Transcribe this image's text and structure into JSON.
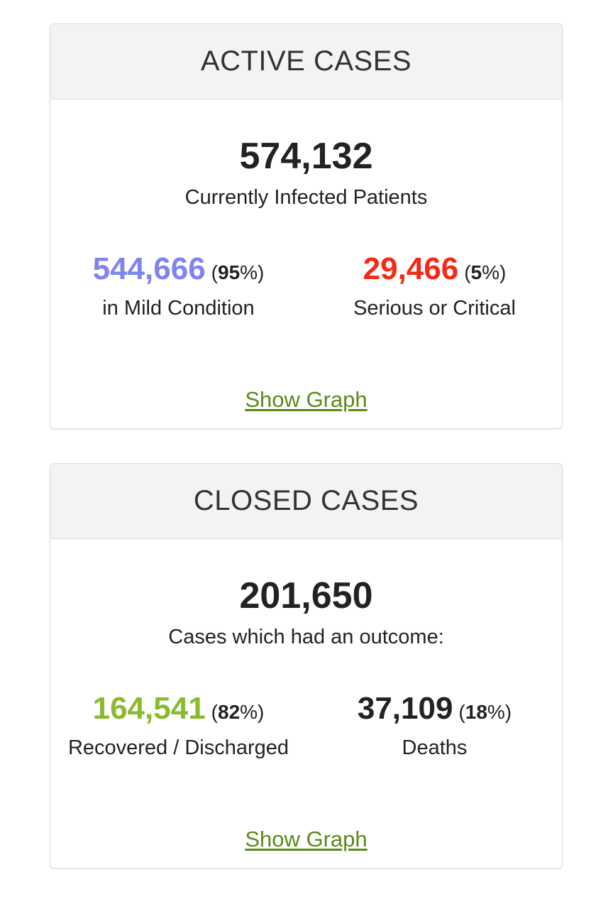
{
  "colors": {
    "mild": "#7f84f0",
    "serious": "#f32a17",
    "recovered": "#8aba2e",
    "deaths": "#222222",
    "link": "#5a8a1a"
  },
  "active": {
    "title": "ACTIVE CASES",
    "total": "574,132",
    "total_label": "Currently Infected Patients",
    "left": {
      "number": "544,666",
      "pct_open": "(",
      "pct_value": "95",
      "pct_close": "%)",
      "label": "in Mild Condition"
    },
    "right": {
      "number": "29,466",
      "pct_open": "(",
      "pct_value": "5",
      "pct_close": "%)",
      "label": "Serious or Critical"
    },
    "link": "Show Graph"
  },
  "closed": {
    "title": "CLOSED CASES",
    "total": "201,650",
    "total_label": "Cases which had an outcome:",
    "left": {
      "number": "164,541",
      "pct_open": "(",
      "pct_value": "82",
      "pct_close": "%)",
      "label": "Recovered / Discharged"
    },
    "right": {
      "number": "37,109",
      "pct_open": "(",
      "pct_value": "18",
      "pct_close": "%)",
      "label": "Deaths"
    },
    "link": "Show Graph"
  }
}
